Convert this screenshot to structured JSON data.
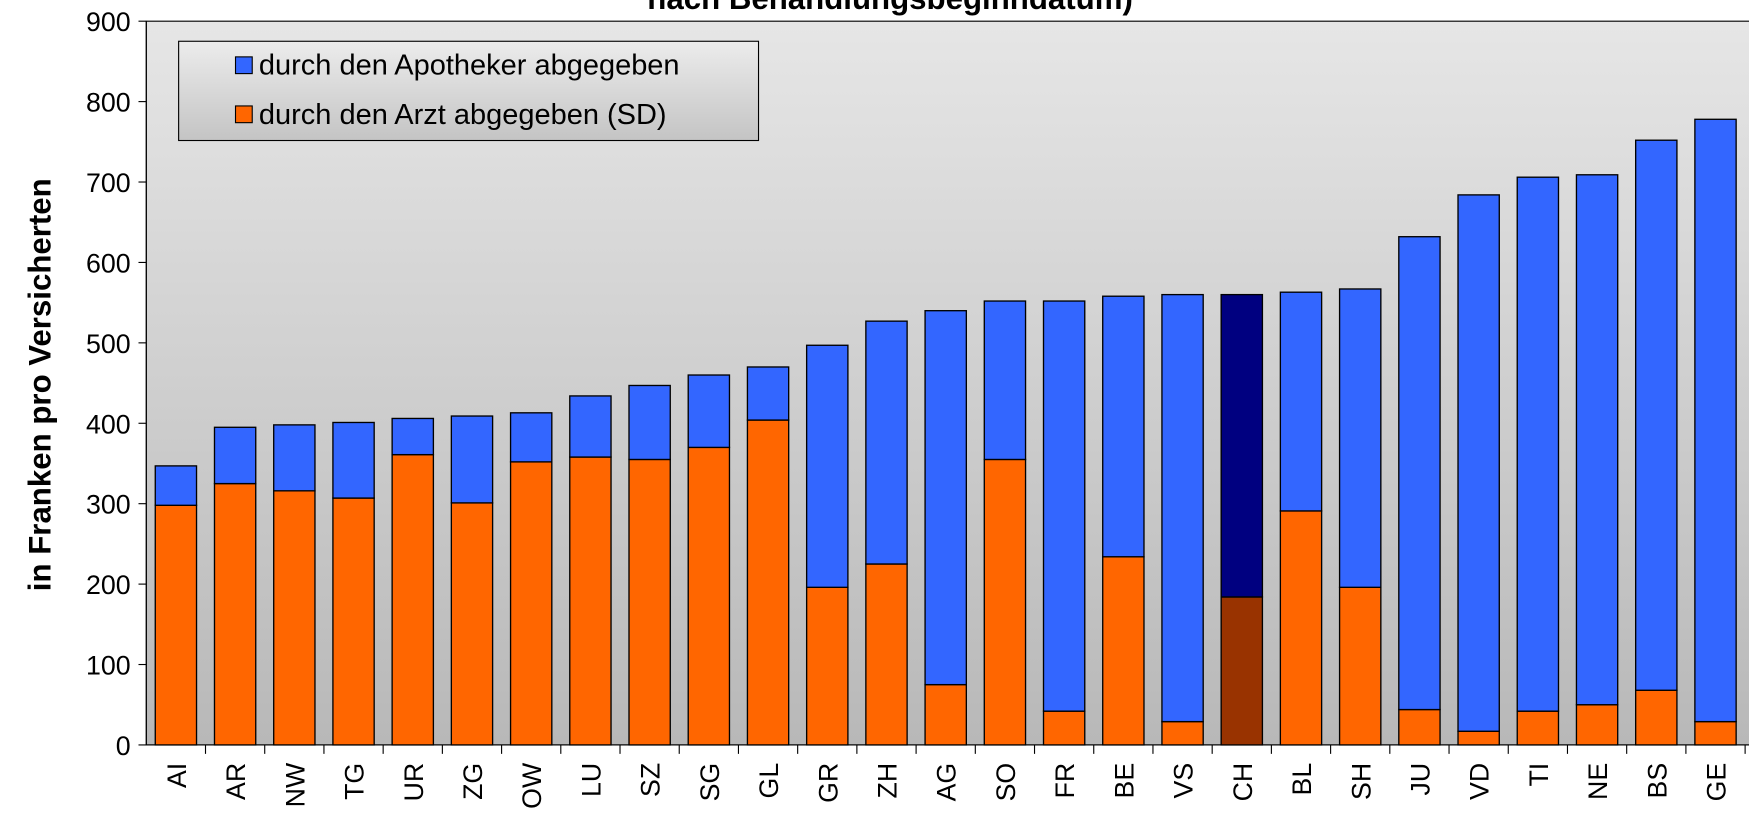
{
  "chart_data": {
    "type": "stacked_bar",
    "title": "nach Behandlungsbeginndatum)",
    "y_label": "in Franken pro Versicherten",
    "categories": [
      "AI",
      "AR",
      "NW",
      "TG",
      "UR",
      "ZG",
      "OW",
      "LU",
      "SZ",
      "SG",
      "GL",
      "GR",
      "ZH",
      "AG",
      "SO",
      "FR",
      "BE",
      "VS",
      "CH",
      "BL",
      "SH",
      "JU",
      "VD",
      "TI",
      "NE",
      "BS",
      "GE"
    ],
    "series": [
      {
        "name": "durch den Arzt abgegeben (SD)",
        "color": "#ff6600",
        "highlight_color": "#993300",
        "values": [
          298,
          325,
          316,
          307,
          361,
          301,
          352,
          358,
          355,
          370,
          404,
          196,
          225,
          75,
          355,
          42,
          234,
          29,
          184,
          291,
          196,
          44,
          17,
          42,
          50,
          68,
          29
        ]
      },
      {
        "name": "durch den Apotheker abgegeben",
        "color": "#3366ff",
        "highlight_color": "#000080",
        "values": [
          49,
          70,
          82,
          94,
          45,
          108,
          61,
          76,
          92,
          90,
          66,
          301,
          302,
          465,
          197,
          510,
          324,
          531,
          376,
          272,
          371,
          588,
          667,
          664,
          659,
          684,
          749
        ]
      }
    ],
    "highlight_category": "CH",
    "ylim": [
      0,
      900
    ],
    "yticks": [
      0,
      100,
      200,
      300,
      400,
      500,
      600,
      700,
      800,
      900
    ],
    "legend": "top-left"
  }
}
